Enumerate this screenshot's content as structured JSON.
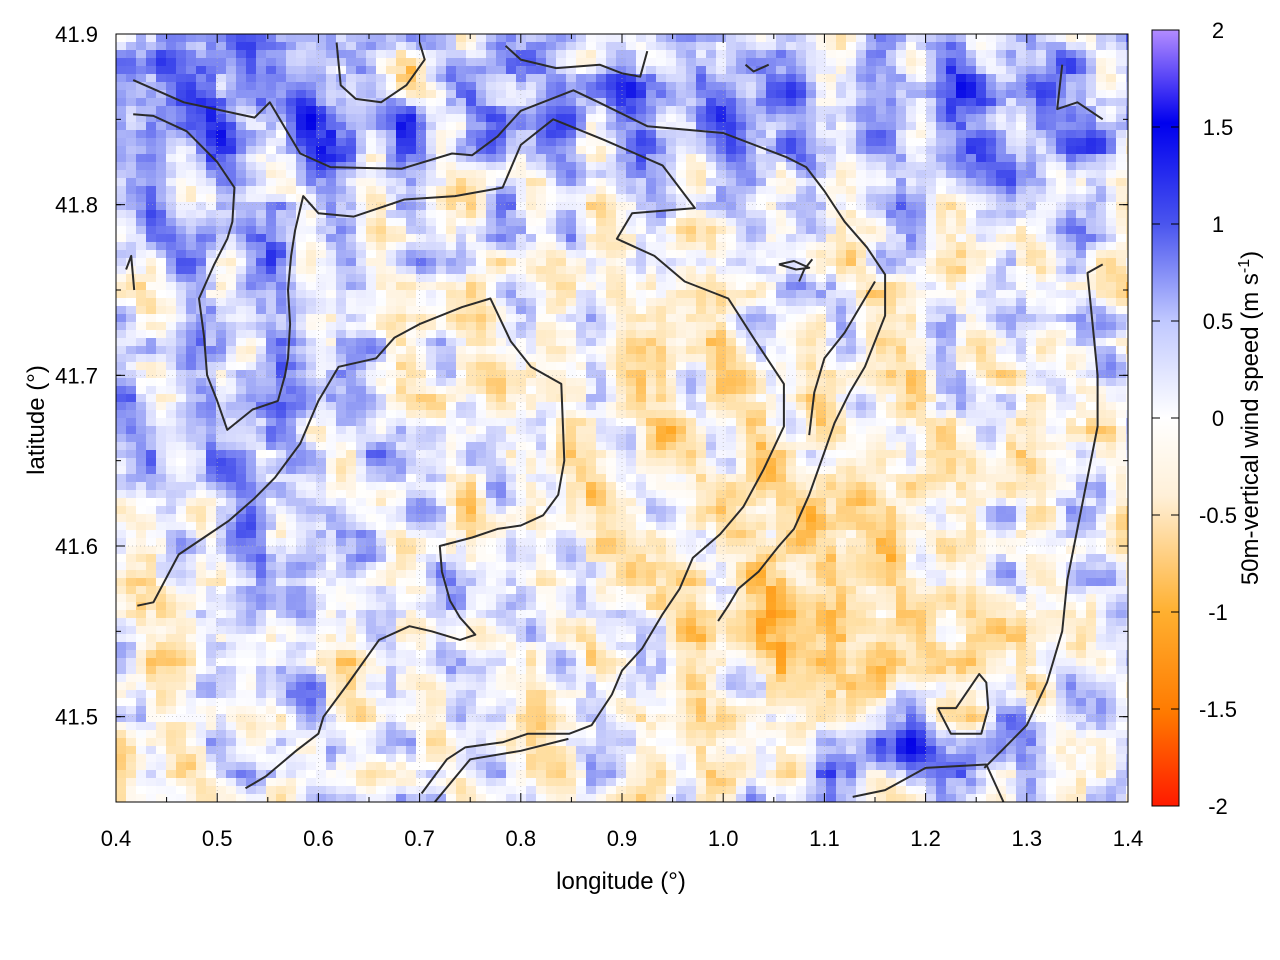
{
  "chart_data": {
    "type": "heatmap",
    "title": "",
    "xlabel": "longitude (°)",
    "ylabel": "latitude (°)",
    "colorbar_label_main": "50m-vertical wind speed (m s",
    "colorbar_label_sup": "-1",
    "colorbar_label_close": ")",
    "xlim": [
      0.4,
      1.4
    ],
    "ylim": [
      41.45,
      41.9
    ],
    "x_ticks": [
      "0.4",
      "0.5",
      "0.6",
      "0.7",
      "0.8",
      "0.9",
      "1.0",
      "1.1",
      "1.2",
      "1.3",
      "1.4"
    ],
    "y_ticks": [
      "41.5",
      "41.6",
      "41.7",
      "41.8",
      "41.9"
    ],
    "colorbar_ticks": [
      "2",
      "1.5",
      "1",
      "0.5",
      "0",
      "-0.5",
      "-1",
      "-1.5",
      "-2"
    ],
    "colorbar_range": [
      -2,
      2
    ],
    "colormap": [
      "#ff1a00",
      "#ff8c00",
      "#ffc860",
      "#fff8ec",
      "#ffffff",
      "#c0c8ff",
      "#4a55ee",
      "#0000ee",
      "#b38cff"
    ],
    "grid": true,
    "contours": [
      [
        [
          0.417,
          41.873
        ],
        [
          0.467,
          41.86
        ],
        [
          0.537,
          41.851
        ],
        [
          0.552,
          41.86
        ],
        [
          0.582,
          41.83
        ],
        [
          0.612,
          41.822
        ],
        [
          0.682,
          41.821
        ],
        [
          0.732,
          41.83
        ],
        [
          0.752,
          41.829
        ],
        [
          0.777,
          41.84
        ],
        [
          0.8,
          41.855
        ],
        [
          0.852,
          41.867
        ],
        [
          0.877,
          41.86
        ],
        [
          0.925,
          41.846
        ],
        [
          1.0,
          41.842
        ],
        [
          1.062,
          41.828
        ],
        [
          1.082,
          41.822
        ],
        [
          1.1,
          41.808
        ],
        [
          1.12,
          41.79
        ],
        [
          1.142,
          41.775
        ],
        [
          1.16,
          41.759
        ],
        [
          1.16,
          41.735
        ],
        [
          1.15,
          41.72
        ],
        [
          1.14,
          41.705
        ],
        [
          1.125,
          41.69
        ],
        [
          1.11,
          41.672
        ],
        [
          1.1,
          41.655
        ],
        [
          1.085,
          41.63
        ],
        [
          1.07,
          41.61
        ],
        [
          1.055,
          41.6
        ],
        [
          1.035,
          41.585
        ],
        [
          1.015,
          41.575
        ],
        [
          1.005,
          41.565
        ],
        [
          0.995,
          41.556
        ]
      ],
      [
        [
          0.417,
          41.853
        ],
        [
          0.437,
          41.852
        ],
        [
          0.47,
          41.843
        ],
        [
          0.5,
          41.825
        ],
        [
          0.517,
          41.81
        ],
        [
          0.515,
          41.79
        ],
        [
          0.51,
          41.78
        ],
        [
          0.497,
          41.765
        ],
        [
          0.482,
          41.745
        ],
        [
          0.487,
          41.723
        ],
        [
          0.49,
          41.7
        ],
        [
          0.5,
          41.685
        ],
        [
          0.51,
          41.668
        ],
        [
          0.535,
          41.68
        ],
        [
          0.56,
          41.685
        ],
        [
          0.567,
          41.7
        ],
        [
          0.57,
          41.71
        ],
        [
          0.572,
          41.73
        ],
        [
          0.57,
          41.75
        ],
        [
          0.573,
          41.77
        ],
        [
          0.577,
          41.785
        ],
        [
          0.585,
          41.805
        ],
        [
          0.6,
          41.795
        ],
        [
          0.635,
          41.793
        ],
        [
          0.685,
          41.803
        ],
        [
          0.735,
          41.805
        ],
        [
          0.782,
          41.81
        ],
        [
          0.8,
          41.835
        ],
        [
          0.832,
          41.85
        ],
        [
          0.882,
          41.838
        ],
        [
          0.94,
          41.823
        ],
        [
          0.972,
          41.798
        ],
        [
          0.91,
          41.795
        ],
        [
          0.895,
          41.78
        ],
        [
          0.932,
          41.77
        ],
        [
          0.962,
          41.755
        ],
        [
          1.005,
          41.745
        ],
        [
          1.032,
          41.72
        ],
        [
          1.06,
          41.695
        ],
        [
          1.06,
          41.67
        ],
        [
          1.04,
          41.645
        ],
        [
          1.02,
          41.623
        ],
        [
          0.997,
          41.607
        ],
        [
          0.97,
          41.593
        ],
        [
          0.957,
          41.575
        ],
        [
          0.94,
          41.56
        ],
        [
          0.92,
          41.54
        ],
        [
          0.9,
          41.527
        ],
        [
          0.89,
          41.513
        ],
        [
          0.87,
          41.495
        ],
        [
          0.848,
          41.49
        ],
        [
          0.807,
          41.49
        ],
        [
          0.782,
          41.485
        ],
        [
          0.745,
          41.482
        ],
        [
          0.727,
          41.475
        ],
        [
          0.702,
          41.455
        ]
      ],
      [
        [
          0.421,
          41.565
        ],
        [
          0.437,
          41.567
        ],
        [
          0.462,
          41.595
        ],
        [
          0.487,
          41.605
        ],
        [
          0.512,
          41.615
        ],
        [
          0.537,
          41.628
        ],
        [
          0.557,
          41.64
        ],
        [
          0.582,
          41.66
        ],
        [
          0.6,
          41.685
        ],
        [
          0.62,
          41.705
        ],
        [
          0.657,
          41.71
        ],
        [
          0.675,
          41.722
        ],
        [
          0.7,
          41.73
        ],
        [
          0.742,
          41.74
        ],
        [
          0.77,
          41.745
        ],
        [
          0.79,
          41.72
        ],
        [
          0.81,
          41.705
        ],
        [
          0.84,
          41.695
        ],
        [
          0.843,
          41.65
        ],
        [
          0.837,
          41.63
        ],
        [
          0.822,
          41.618
        ],
        [
          0.8,
          41.612
        ],
        [
          0.777,
          41.61
        ],
        [
          0.752,
          41.605
        ],
        [
          0.72,
          41.6
        ],
        [
          0.722,
          41.585
        ],
        [
          0.73,
          41.568
        ],
        [
          0.74,
          41.558
        ],
        [
          0.755,
          41.548
        ],
        [
          0.74,
          41.545
        ],
        [
          0.712,
          41.55
        ],
        [
          0.69,
          41.553
        ],
        [
          0.66,
          41.545
        ],
        [
          0.63,
          41.52
        ],
        [
          0.605,
          41.5
        ],
        [
          0.6,
          41.49
        ],
        [
          0.578,
          41.48
        ],
        [
          0.548,
          41.465
        ],
        [
          0.528,
          41.458
        ]
      ],
      [
        [
          1.055,
          41.765
        ],
        [
          1.072,
          41.762
        ],
        [
          1.085,
          41.763
        ],
        [
          1.07,
          41.767
        ],
        [
          1.055,
          41.765
        ]
      ],
      [
        [
          1.212,
          41.505
        ],
        [
          1.23,
          41.505
        ],
        [
          1.253,
          41.525
        ],
        [
          1.26,
          41.52
        ],
        [
          1.262,
          41.505
        ],
        [
          1.255,
          41.49
        ],
        [
          1.225,
          41.49
        ],
        [
          1.212,
          41.505
        ]
      ],
      [
        [
          1.128,
          41.453
        ],
        [
          1.16,
          41.457
        ],
        [
          1.2,
          41.47
        ],
        [
          1.26,
          41.472
        ],
        [
          1.277,
          41.45
        ]
      ],
      [
        [
          0.715,
          41.45
        ],
        [
          0.75,
          41.475
        ],
        [
          0.8,
          41.48
        ],
        [
          0.847,
          41.487
        ]
      ],
      [
        [
          0.418,
          41.75
        ],
        [
          0.415,
          41.77
        ],
        [
          0.41,
          41.762
        ]
      ],
      [
        [
          1.335,
          41.882
        ],
        [
          1.33,
          41.856
        ],
        [
          1.35,
          41.86
        ],
        [
          1.375,
          41.85
        ]
      ],
      [
        [
          1.075,
          41.755
        ],
        [
          1.08,
          41.762
        ],
        [
          1.088,
          41.768
        ]
      ],
      [
        [
          0.618,
          41.895
        ],
        [
          0.622,
          41.87
        ],
        [
          0.637,
          41.862
        ],
        [
          0.662,
          41.86
        ],
        [
          0.687,
          41.87
        ],
        [
          0.705,
          41.885
        ],
        [
          0.7,
          41.895
        ]
      ],
      [
        [
          0.785,
          41.893
        ],
        [
          0.8,
          41.885
        ],
        [
          0.835,
          41.88
        ],
        [
          0.878,
          41.882
        ],
        [
          0.9,
          41.877
        ],
        [
          0.918,
          41.875
        ],
        [
          0.925,
          41.89
        ]
      ],
      [
        [
          1.022,
          41.882
        ],
        [
          1.03,
          41.878
        ],
        [
          1.045,
          41.882
        ]
      ],
      [
        [
          1.085,
          41.665
        ],
        [
          1.09,
          41.69
        ],
        [
          1.1,
          41.71
        ],
        [
          1.12,
          41.725
        ],
        [
          1.135,
          41.74
        ],
        [
          1.15,
          41.755
        ]
      ],
      [
        [
          1.258,
          41.47
        ],
        [
          1.275,
          41.48
        ],
        [
          1.3,
          41.495
        ],
        [
          1.32,
          41.52
        ],
        [
          1.335,
          41.55
        ],
        [
          1.34,
          41.58
        ],
        [
          1.35,
          41.61
        ],
        [
          1.36,
          41.64
        ],
        [
          1.37,
          41.67
        ],
        [
          1.37,
          41.7
        ],
        [
          1.365,
          41.73
        ],
        [
          1.36,
          41.76
        ],
        [
          1.375,
          41.765
        ]
      ]
    ]
  }
}
